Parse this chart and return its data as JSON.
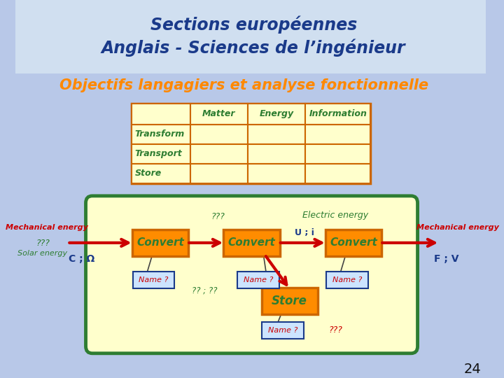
{
  "title_line1": "Sections européennes",
  "title_line2": "Anglais - Sciences de l’ingénieur",
  "subtitle": "Objectifs langagiers et analyse fonctionnelle",
  "bg_color": "#b8c8e8",
  "header_bg": "#d0dff0",
  "title_color": "#1a3a8a",
  "subtitle_color": "#ff8800",
  "page_number": "24",
  "table": {
    "headers": [
      "",
      "Matter",
      "Energy",
      "Information"
    ],
    "rows": [
      "Transform",
      "Transport",
      "Store"
    ],
    "border_color": "#cc6600",
    "header_text_color": "#2e7d32",
    "row_text_color": "#2e7d32",
    "cell_fill": "#ffffcc",
    "header_fill": "#ffffcc"
  },
  "diagram": {
    "bg_color": "#ffffcc",
    "border_color": "#2e7d32",
    "convert_fill": "#ff8c00",
    "convert_border": "#cc6600",
    "convert_text": "#2e7d32",
    "store_fill": "#ff8c00",
    "store_border": "#cc6600",
    "store_text": "#2e7d32",
    "name_fill": "#cce4ff",
    "name_border": "#1a3a8a",
    "name_text": "#cc0000",
    "arrow_color": "#cc0000",
    "label_color_red": "#cc0000",
    "label_color_green": "#2e7d32",
    "label_color_blue": "#1a3a8a",
    "electric_energy_text": "Electric energy",
    "u_i_text": "U ; i",
    "qqq_top": "???",
    "qqq_left1": "???",
    "qqq_right": "???",
    "qq_qq": "?? ; ??",
    "mechanical_left": "Mechanical energy",
    "solar_left": "Solar energy",
    "c_omega": "C ; Ω",
    "mechanical_right": "Mechanical energy",
    "f_v": "F ; V"
  }
}
